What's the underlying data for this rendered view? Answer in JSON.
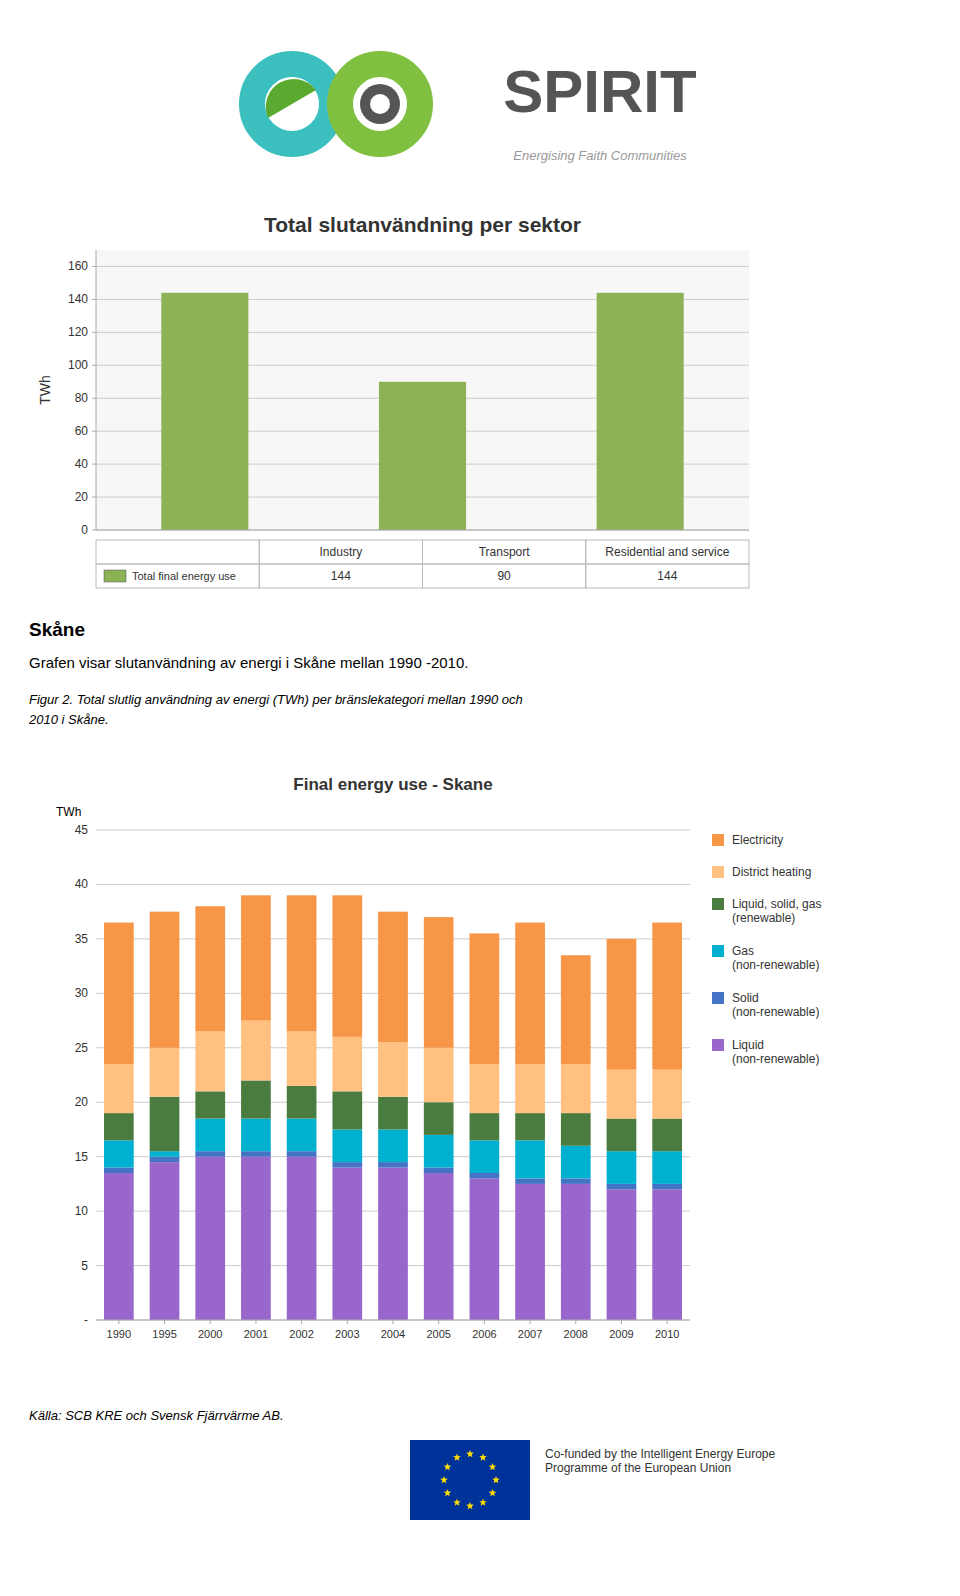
{
  "chart_data": [
    {
      "type": "bar",
      "title": "Total slutanvändning per sektor",
      "ylabel": "TWh",
      "categories": [
        "Industry",
        "Transport",
        "Residential and service"
      ],
      "series": [
        {
          "name": "Total final energy use",
          "color": "#8DB255",
          "values": [
            144,
            90,
            144
          ]
        }
      ],
      "ylim": [
        0,
        170
      ],
      "yticks": [
        0,
        20,
        40,
        60,
        80,
        100,
        120,
        140,
        160
      ],
      "grid": true,
      "data_labels": true,
      "annotations": [
        "SPIRIT",
        "Energising Faith Communities"
      ]
    },
    {
      "type": "bar",
      "title": "Final energy use - Skane",
      "ylabel": "TWh",
      "stacked": true,
      "categories": [
        "1990",
        "1995",
        "2000",
        "2001",
        "2002",
        "2003",
        "2004",
        "2005",
        "2006",
        "2007",
        "2008",
        "2009",
        "2010"
      ],
      "series": [
        {
          "name": "Liquid\n(non-renewable)",
          "color": "#9966CC",
          "values": [
            13.5,
            14.5,
            15.0,
            15.0,
            15.0,
            14.0,
            14.0,
            13.5,
            13.0,
            12.5,
            12.5,
            12.0,
            12.0
          ]
        },
        {
          "name": "Solid\n(non-renewable)",
          "color": "#4472C4",
          "values": [
            0.5,
            0.5,
            0.5,
            0.5,
            0.5,
            0.5,
            0.5,
            0.5,
            0.5,
            0.5,
            0.5,
            0.5,
            0.5
          ]
        },
        {
          "name": "Gas\n(non-renewable)",
          "color": "#00B0D0",
          "values": [
            2.5,
            0.5,
            3.0,
            3.0,
            3.0,
            3.0,
            3.0,
            3.0,
            3.0,
            3.5,
            3.0,
            3.0,
            3.0
          ]
        },
        {
          "name": "Liquid, solid, gas\n(renewable)",
          "color": "#4A7C3F",
          "values": [
            2.5,
            5.0,
            2.5,
            3.5,
            3.0,
            3.5,
            3.0,
            3.0,
            2.5,
            2.5,
            3.0,
            3.0,
            3.0
          ]
        },
        {
          "name": "District heating",
          "color": "#FFC080",
          "values": [
            4.5,
            4.5,
            5.5,
            5.5,
            5.0,
            5.0,
            5.0,
            5.0,
            4.5,
            4.5,
            4.5,
            4.5,
            4.5
          ]
        },
        {
          "name": "Electricity",
          "color": "#F79646",
          "values": [
            13.0,
            12.5,
            11.5,
            11.5,
            12.5,
            13.0,
            12.0,
            12.0,
            12.0,
            13.0,
            10.0,
            12.0,
            13.5
          ]
        }
      ],
      "ylim": [
        0,
        45
      ],
      "yticks": [
        {
          "value": 0,
          "label": "-"
        },
        5,
        10,
        15,
        20,
        25,
        30,
        35,
        40,
        45
      ],
      "grid": true,
      "legend": "right",
      "annotations": [
        "Skåne",
        "Grafen visar slutanvändning av energi i Skåne mellan 1990 -2010.",
        "Figur 2. Total slutlig användning av energi (TWh) per bränslekategori mellan 1990 och",
        "2010 i Skåne.",
        "Källa: SCB KRE och Svensk Fjärrvärme AB.",
        "Co-funded by the Intelligent Energy Europe\nProgramme of the European Union"
      ]
    }
  ]
}
